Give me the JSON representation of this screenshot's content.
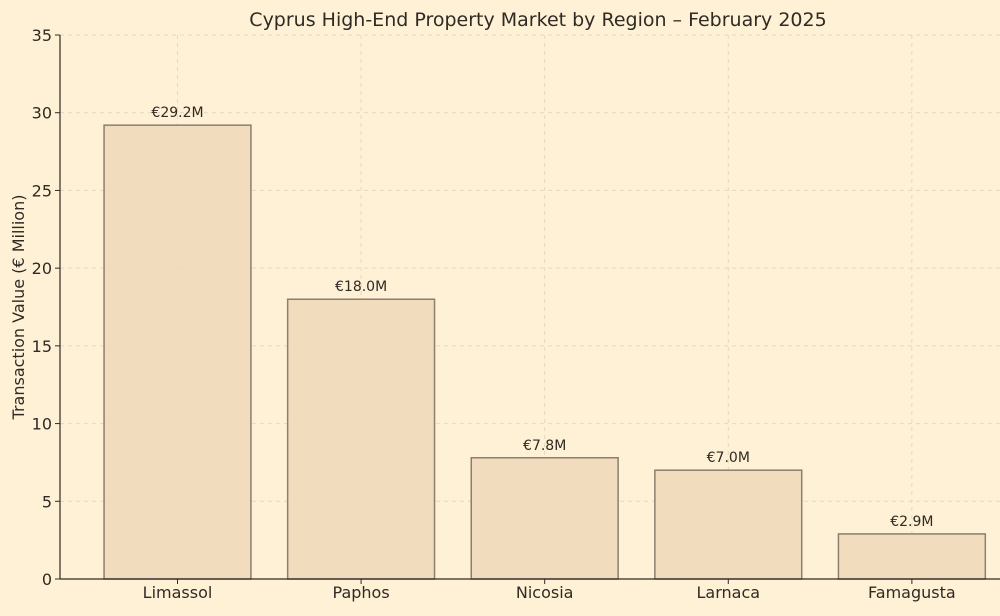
{
  "chart_data": {
    "type": "bar",
    "title": "Cyprus High-End Property Market by Region – February 2025",
    "xlabel": "",
    "ylabel": "Transaction Value (€ Million)",
    "categories": [
      "Limassol",
      "Paphos",
      "Nicosia",
      "Larnaca",
      "Famagusta"
    ],
    "values": [
      29.2,
      18.0,
      7.8,
      7.0,
      2.9
    ],
    "data_labels": [
      "€29.2M",
      "€18.0M",
      "€7.8M",
      "€7.0M",
      "€2.9M"
    ],
    "ylim": [
      0,
      35
    ],
    "yticks": [
      0,
      5,
      10,
      15,
      20,
      25,
      30,
      35
    ],
    "grid": true,
    "legend": "none",
    "colors": {
      "background": "#FFF1D6",
      "bar_fill": "#EFD9BA",
      "bar_edge": "#8C7F70",
      "grid": "#E6D7BE",
      "axis": "#2f2a24"
    }
  }
}
